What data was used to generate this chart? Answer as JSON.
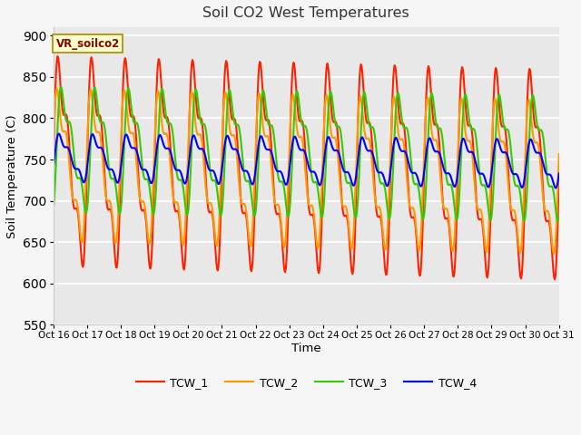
{
  "title": "Soil CO2 West Temperatures",
  "xlabel": "Time",
  "ylabel": "Soil Temperature (C)",
  "ylim": [
    550,
    910
  ],
  "xlim": [
    0,
    360
  ],
  "annotation_label": "VR_soilco2",
  "bg_color": "#f5f5f5",
  "plot_bg": "#e8e8e8",
  "legend_entries": [
    "TCW_1",
    "TCW_2",
    "TCW_3",
    "TCW_4"
  ],
  "line_colors": [
    "#ff2200",
    "#ff9900",
    "#33cc00",
    "#0000ff"
  ],
  "xtick_labels": [
    "Oct 16",
    "Oct 17",
    "Oct 18",
    "Oct 19",
    "Oct 20",
    "Oct 21",
    "Oct 22",
    "Oct 23",
    "Oct 24",
    "Oct 25",
    "Oct 26",
    "Oct 27",
    "Oct 28",
    "Oct 29",
    "Oct 30",
    "Oct 31"
  ],
  "xtick_positions": [
    0,
    24,
    48,
    72,
    96,
    120,
    144,
    168,
    192,
    216,
    240,
    264,
    288,
    312,
    336,
    360
  ],
  "ytick_positions": [
    550,
    600,
    650,
    700,
    750,
    800,
    850,
    900
  ],
  "n_points": 721,
  "period": 24,
  "tcw1_base": 748,
  "tcw1_amp1": 130,
  "tcw1_phase1": 0.0,
  "tcw1_amp2": 25,
  "tcw1_phase2": 0.0,
  "tcw1_trend": -0.045,
  "tcw2_base": 743,
  "tcw2_amp1": 95,
  "tcw2_phase1": 0.15,
  "tcw2_amp2": 20,
  "tcw2_phase2": 0.15,
  "tcw2_trend": -0.04,
  "tcw3_base": 762,
  "tcw3_amp1": 78,
  "tcw3_phase1": -0.6,
  "tcw3_amp2": 18,
  "tcw3_phase2": -0.6,
  "tcw3_trend": -0.03,
  "tcw4_base": 752,
  "tcw4_amp1": 30,
  "tcw4_phase1": -0.2,
  "tcw4_amp2": 5,
  "tcw4_phase2": -0.2,
  "tcw4_trend": -0.02
}
